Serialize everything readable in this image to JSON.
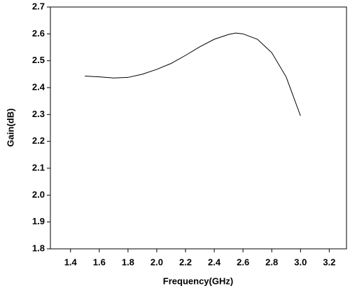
{
  "chart_data": {
    "type": "line",
    "x_label": "Frequency(GHz)",
    "y_label": "Gain(dB)",
    "x": [
      1.5,
      1.6,
      1.7,
      1.8,
      1.9,
      2.0,
      2.1,
      2.2,
      2.3,
      2.4,
      2.5,
      2.55,
      2.6,
      2.7,
      2.8,
      2.9,
      3.0
    ],
    "series": [
      {
        "color": "#000000",
        "values": [
          2.443,
          2.44,
          2.436,
          2.438,
          2.45,
          2.468,
          2.49,
          2.52,
          2.552,
          2.58,
          2.598,
          2.603,
          2.6,
          2.58,
          2.53,
          2.44,
          2.295
        ]
      }
    ],
    "xlim": [
      1.26,
      3.32
    ],
    "ylim": [
      1.8,
      2.7
    ],
    "xticks": [
      1.4,
      1.6,
      1.8,
      {
        "value": 2.0,
        "label": "2.0"
      },
      2.2,
      2.4,
      2.6,
      2.8,
      {
        "value": 3.0,
        "label": "3.0"
      },
      3.2
    ],
    "yticks": [
      1.8,
      1.9,
      {
        "value": 2.0,
        "label": "2.0"
      },
      2.1,
      2.2,
      2.3,
      2.4,
      2.5,
      2.6,
      2.7
    ]
  }
}
